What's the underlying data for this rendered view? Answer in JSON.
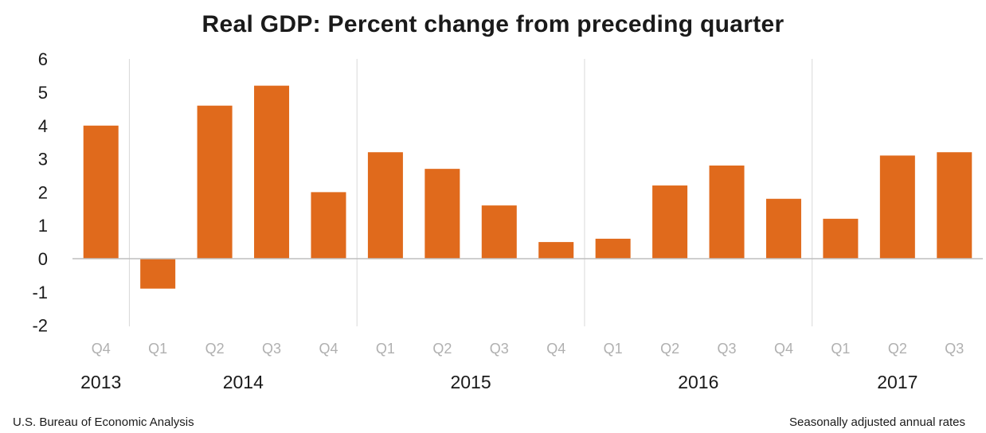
{
  "chart_data": {
    "type": "bar",
    "title": "Real GDP:  Percent change from preceding quarter",
    "categories": [
      "Q4",
      "Q1",
      "Q2",
      "Q3",
      "Q4",
      "Q1",
      "Q2",
      "Q3",
      "Q4",
      "Q1",
      "Q2",
      "Q3",
      "Q4",
      "Q1",
      "Q2",
      "Q3"
    ],
    "years": [
      {
        "label": "2013",
        "quarters": 1
      },
      {
        "label": "2014",
        "quarters": 4
      },
      {
        "label": "2015",
        "quarters": 4
      },
      {
        "label": "2016",
        "quarters": 4
      },
      {
        "label": "2017",
        "quarters": 3
      }
    ],
    "values": [
      4.0,
      -0.9,
      4.6,
      5.2,
      2.0,
      3.2,
      2.7,
      1.6,
      0.5,
      0.6,
      2.2,
      2.8,
      1.8,
      1.2,
      3.1,
      3.2
    ],
    "yticks": [
      "6",
      "5",
      "4",
      "3",
      "2",
      "1",
      "0",
      "-1",
      "-2"
    ],
    "ylim": [
      -2,
      6
    ],
    "xlabel": "",
    "ylabel": "",
    "grid": false,
    "colors": {
      "bar": "#e06a1c",
      "axis": "#bfbfbf",
      "divider": "#d9d9d9",
      "quarter_label": "#b0b0b0"
    }
  },
  "footer": {
    "source": "U.S. Bureau of Economic Analysis",
    "note": "Seasonally adjusted annual  rates"
  }
}
